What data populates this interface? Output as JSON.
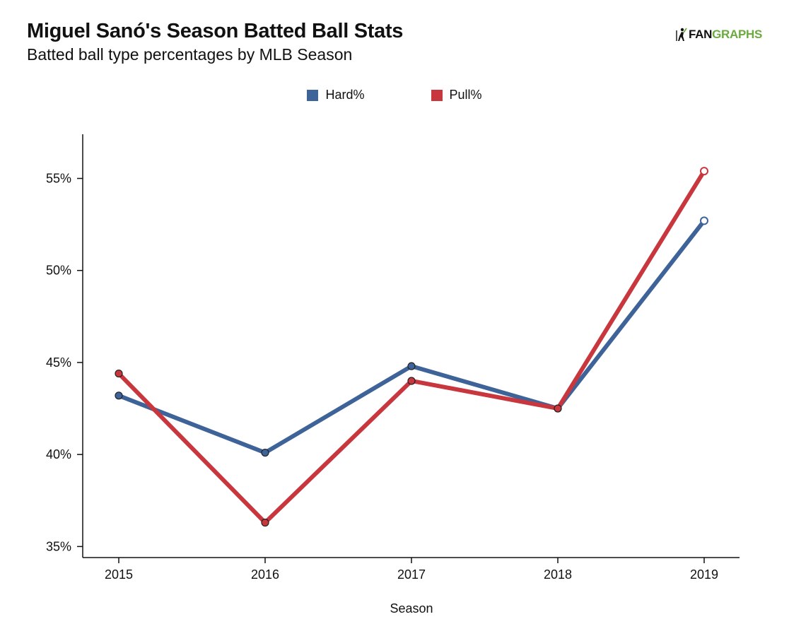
{
  "header": {
    "title": "Miguel Sanó's Season Batted Ball Stats",
    "subtitle": "Batted ball type percentages by MLB Season"
  },
  "logo": {
    "text_dark": "FAN",
    "text_green": "GRAPHS",
    "icon": "baseball-batter-icon"
  },
  "colors": {
    "hard": "#3d6399",
    "pull": "#c9373e",
    "logo_green": "#6aaa3f"
  },
  "chart_data": {
    "type": "line",
    "title": "Miguel Sanó's Season Batted Ball Stats",
    "subtitle": "Batted ball type percentages by MLB Season",
    "xlabel": "Season",
    "ylabel": "",
    "categories": [
      "2015",
      "2016",
      "2017",
      "2018",
      "2019"
    ],
    "ylim": [
      34.4,
      57.4
    ],
    "yticks": [
      35,
      40,
      45,
      50,
      55
    ],
    "ytick_labels": [
      "35%",
      "40%",
      "45%",
      "50%",
      "55%"
    ],
    "grid": false,
    "legend_position": "top-center",
    "series": [
      {
        "name": "Hard%",
        "color": "#3d6399",
        "values": [
          43.2,
          40.1,
          44.8,
          42.5,
          52.7
        ]
      },
      {
        "name": "Pull%",
        "color": "#c9373e",
        "values": [
          44.4,
          36.3,
          44.0,
          42.5,
          55.4
        ]
      }
    ]
  }
}
